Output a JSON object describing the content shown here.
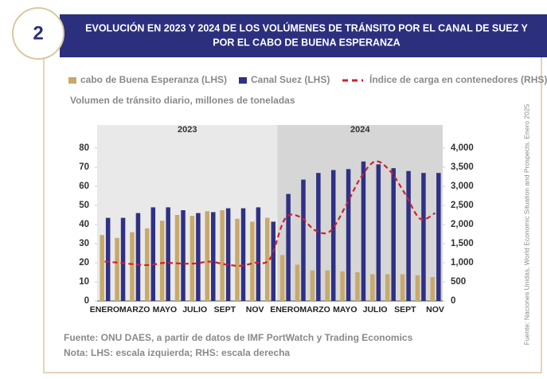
{
  "chart_data": {
    "type": "bar",
    "badge": "2",
    "title_lines": [
      "EVOLUCIÓN EN 2023 Y 2024 DE LOS VOLÚMENES DE TRÁNSITO POR EL CANAL DE SUEZ Y",
      "POR EL CABO DE BUENA ESPERANZA"
    ],
    "subtitle": "Volumen de tránsito diario, millones de toneladas",
    "groups": [
      {
        "label": "2023",
        "months": 12
      },
      {
        "label": "2024",
        "months": 11
      }
    ],
    "categories": [
      "ENERO",
      null,
      "MARZO",
      null,
      "MAYO",
      null,
      "JULIO",
      null,
      "SEPT",
      null,
      "NOV",
      null,
      "ENERO",
      null,
      "MARZO",
      null,
      "MAYO",
      null,
      "JULIO",
      null,
      "SEPT",
      null,
      "NOV"
    ],
    "series": [
      {
        "name": "cabo de Buena Esperanza (LHS)",
        "color": "#c8a96a",
        "values": [
          34.5,
          33,
          36,
          38,
          42,
          45,
          44.5,
          47,
          47.5,
          43,
          41.5,
          43.5,
          24,
          19,
          16,
          16,
          15.5,
          15,
          14,
          14,
          14,
          13.5,
          12.5
        ]
      },
      {
        "name": "Canal Suez (LHS)",
        "color": "#2e3185",
        "values": [
          43.5,
          43.5,
          46,
          49,
          49,
          47.5,
          46,
          46.5,
          48.5,
          48.5,
          49,
          41.5,
          56,
          63.5,
          67,
          68.5,
          69,
          73,
          71.5,
          69.5,
          68,
          67,
          67
        ]
      },
      {
        "name": "Índice de carga en contenedores (RHS)",
        "color": "#d0202b",
        "type": "line",
        "axis": "y2",
        "values": [
          1030,
          1000,
          960,
          940,
          1000,
          980,
          980,
          1030,
          960,
          920,
          1000,
          1100,
          2150,
          2200,
          1850,
          1820,
          2450,
          3200,
          3650,
          3400,
          2800,
          2150,
          2300
        ]
      }
    ],
    "ylim": [
      0,
      80
    ],
    "yticks": [
      0,
      10,
      20,
      30,
      40,
      50,
      60,
      70,
      80
    ],
    "y2lim": [
      0,
      4000
    ],
    "y2ticks": [
      0,
      500,
      {
        "value": 1000,
        "label": "1,000"
      },
      {
        "value": 1500,
        "label": "1,500"
      },
      {
        "value": 2000,
        "label": "2,000"
      },
      {
        "value": 2500,
        "label": "2,500"
      },
      {
        "value": 3000,
        "label": "3,000"
      },
      {
        "value": 3500,
        "label": "3,500"
      },
      {
        "value": 4000,
        "label": "4,000"
      }
    ],
    "notes": [
      "Fuente: ONU DAES, a partir de datos de IMF PortWatch y Trading Economics",
      "Nota: LHS: escala izquierda; RHS: escala derecha"
    ],
    "side_note": "Fuente: Naciones Unidas, World Economic Situation and Prospects. Enero 2025"
  }
}
